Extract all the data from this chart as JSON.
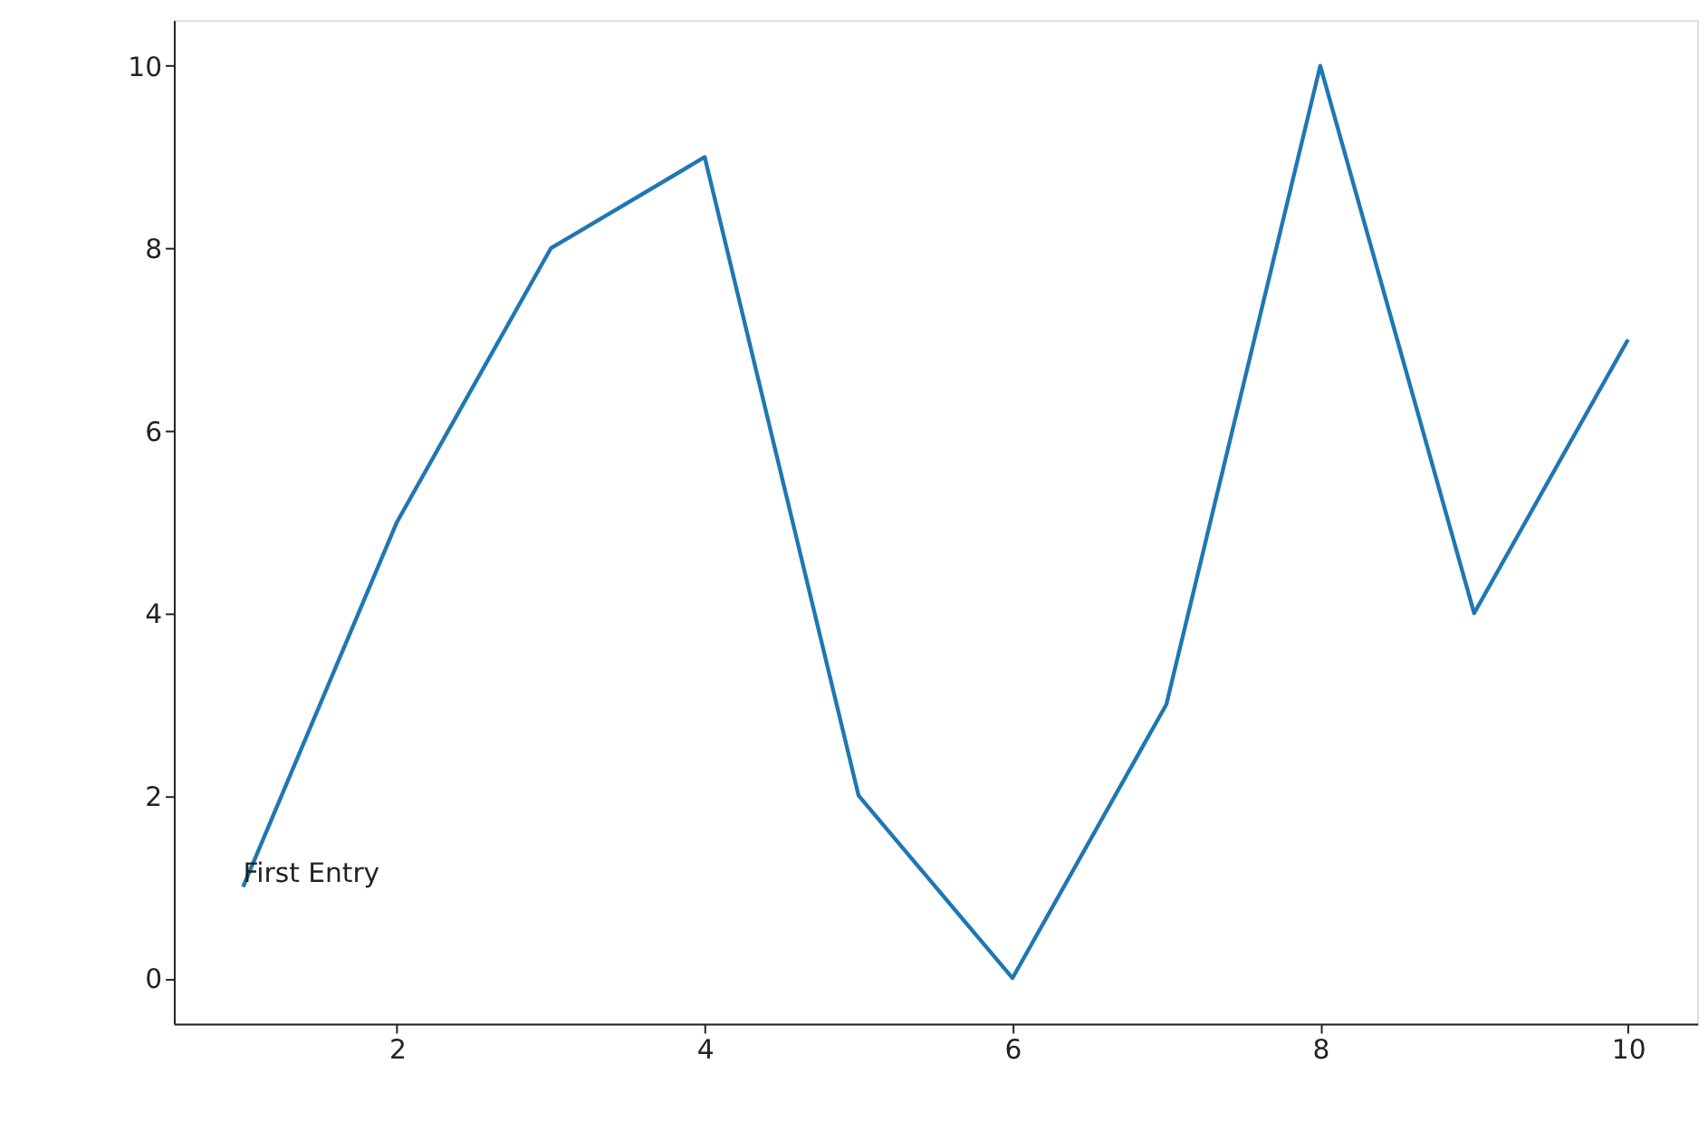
{
  "chart_data": {
    "type": "line",
    "x": [
      1,
      2,
      3,
      4,
      5,
      6,
      7,
      8,
      9,
      10
    ],
    "series": [
      {
        "color": "#1f77b4",
        "values": [
          1,
          5,
          8,
          9,
          2,
          0,
          3,
          10,
          4,
          7
        ]
      }
    ],
    "xlim": [
      0.55,
      10.45
    ],
    "xticks": [
      2,
      4,
      6,
      8,
      10
    ],
    "ylim": [
      -0.5,
      10.5
    ],
    "yticks": [
      0,
      2,
      4,
      6,
      8,
      10
    ],
    "annotations": [
      {
        "text": "First Entry",
        "x": 1,
        "y": 1
      }
    ],
    "grid": false,
    "marker": "none",
    "line_style": "solid"
  }
}
